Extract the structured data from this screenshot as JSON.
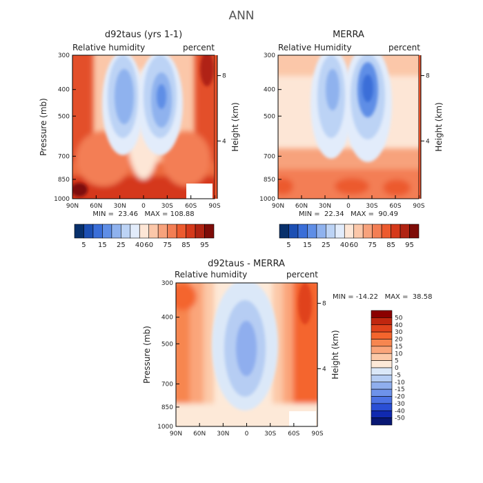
{
  "page_title": "ANN",
  "chart_data": [
    {
      "type": "heatmap",
      "title": "d92taus (yrs 1-1)",
      "subtitle_left": "Relative humidity",
      "subtitle_right": "percent",
      "ylabel": "Pressure (mb)",
      "ylabel_right": "Height (km)",
      "x_ticks": [
        "90N",
        "60N",
        "30N",
        "0",
        "30S",
        "60S",
        "90S"
      ],
      "y_ticks": [
        "300",
        "400",
        "500",
        "700",
        "850",
        "1000"
      ],
      "right_ticks": [
        "8",
        "4"
      ],
      "ylim": [
        300,
        1000
      ],
      "min_max_text": "MIN =  23.46   MAX = 108.88",
      "legend": {
        "labels": [
          "5",
          "15",
          "25",
          "40",
          "60",
          "75",
          "85",
          "95"
        ],
        "colors": [
          "#08306b",
          "#1c4fb3",
          "#3a6ed8",
          "#5f8ee6",
          "#8fb2ee",
          "#bcd3f5",
          "#e2ecfb",
          "#fde6d6",
          "#fbc7a9",
          "#f7a27c",
          "#f37e54",
          "#ec5a2e",
          "#d5391a",
          "#b02312",
          "#7e0c08"
        ]
      }
    },
    {
      "type": "heatmap",
      "title": "MERRA",
      "subtitle_left": "Relative Humidity",
      "subtitle_right": "percent",
      "ylabel": "",
      "ylabel_right": "Height (km)",
      "x_ticks": [
        "90N",
        "60N",
        "30N",
        "0",
        "30S",
        "60S",
        "90S"
      ],
      "y_ticks": [
        "300",
        "400",
        "500",
        "700",
        "850",
        "1000"
      ],
      "right_ticks": [
        "8",
        "4"
      ],
      "ylim": [
        300,
        1000
      ],
      "min_max_text": "MIN =  22.34   MAX =  90.49",
      "legend": {
        "labels": [
          "5",
          "15",
          "25",
          "40",
          "60",
          "75",
          "85",
          "95"
        ],
        "colors": [
          "#08306b",
          "#1c4fb3",
          "#3a6ed8",
          "#5f8ee6",
          "#8fb2ee",
          "#bcd3f5",
          "#e2ecfb",
          "#fde6d6",
          "#fbc7a9",
          "#f7a27c",
          "#f37e54",
          "#ec5a2e",
          "#d5391a",
          "#b02312",
          "#7e0c08"
        ]
      }
    },
    {
      "type": "heatmap",
      "title": "d92taus - MERRA",
      "subtitle_left": "Relative humidity",
      "subtitle_right": "percent",
      "ylabel": "Pressure (mb)",
      "ylabel_right": "Height (km)",
      "x_ticks": [
        "90N",
        "60N",
        "30N",
        "0",
        "30S",
        "60S",
        "90S"
      ],
      "y_ticks": [
        "300",
        "400",
        "500",
        "700",
        "850",
        "1000"
      ],
      "right_ticks": [
        "8",
        "4"
      ],
      "ylim": [
        300,
        1000
      ],
      "min_max_text": "MIN = -14.22   MAX =  38.58",
      "legend": {
        "labels": [
          "50",
          "40",
          "30",
          "20",
          "15",
          "10",
          "5",
          "0",
          "-5",
          "-10",
          "-15",
          "-20",
          "-30",
          "-40",
          "-50"
        ],
        "colors": [
          "#8b0000",
          "#c0260f",
          "#e0431c",
          "#f4652d",
          "#f78650",
          "#faa57a",
          "#fcc9a8",
          "#fde9d8",
          "#dbe8f8",
          "#b6cdf3",
          "#8faeee",
          "#6e92ea",
          "#4c72e4",
          "#2a4fd5",
          "#1029b0",
          "#081773"
        ]
      }
    }
  ]
}
